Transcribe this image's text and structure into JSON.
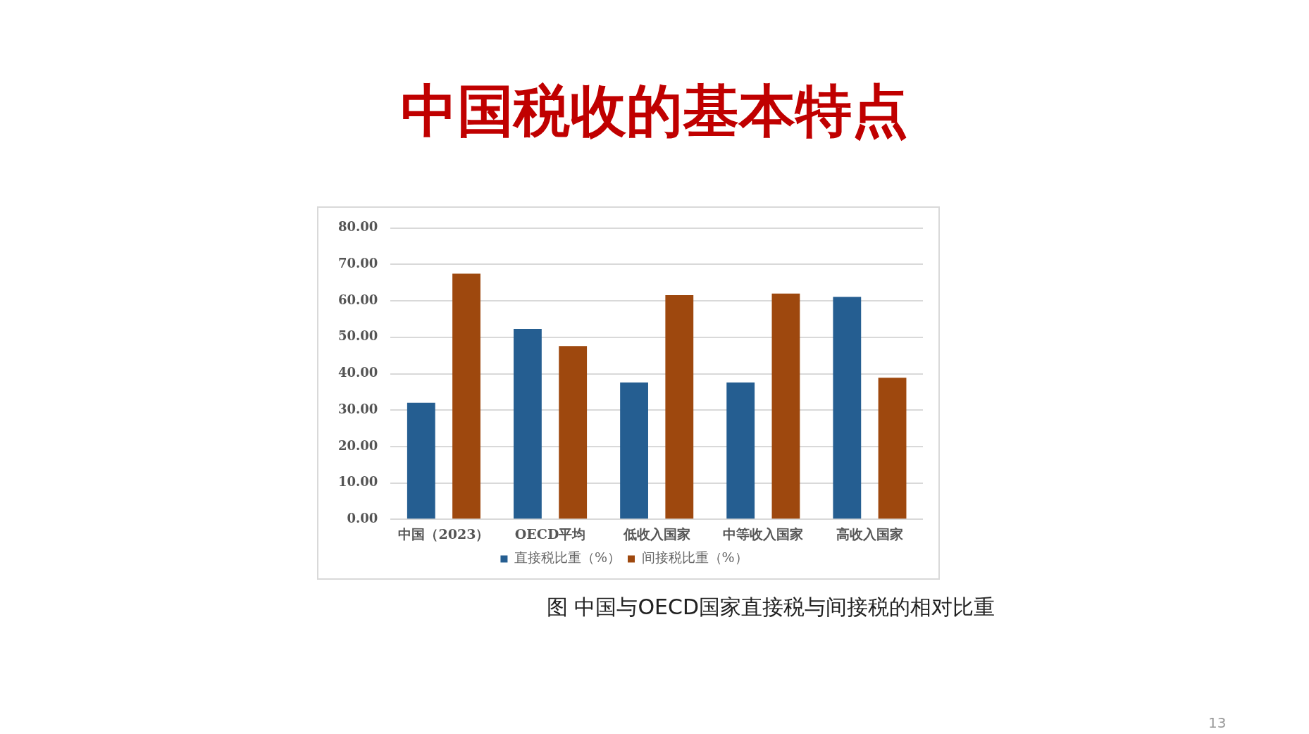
{
  "chart_data": {
    "type": "bar",
    "title": "中国税收的基本特点",
    "categories": [
      "中国（2023）",
      "OECD平均",
      "低收入国家",
      "中等收入国家",
      "高收入国家"
    ],
    "series": [
      {
        "name": "直接税比重（%）",
        "color": "#255e91",
        "values": [
          32.0,
          52.3,
          37.6,
          37.6,
          61.1
        ]
      },
      {
        "name": "间接税比重（%）",
        "color": "#9e480e",
        "values": [
          67.5,
          47.6,
          61.6,
          62.0,
          38.9
        ]
      }
    ],
    "ylim": [
      0,
      80
    ],
    "yticks": [
      {
        "value": 0,
        "label": "0.00"
      },
      {
        "value": 10,
        "label": "10.00"
      },
      {
        "value": 20,
        "label": "20.00"
      },
      {
        "value": 30,
        "label": "30.00"
      },
      {
        "value": 40,
        "label": "40.00"
      },
      {
        "value": 50,
        "label": "50.00"
      },
      {
        "value": 60,
        "label": "60.00"
      },
      {
        "value": 70,
        "label": "70.00"
      },
      {
        "value": 80,
        "label": "80.00"
      }
    ],
    "grid": "y",
    "legend": "bottom",
    "annotations": [
      "图 中国与OECD国家直接税与间接税的相对比重",
      "13"
    ]
  }
}
